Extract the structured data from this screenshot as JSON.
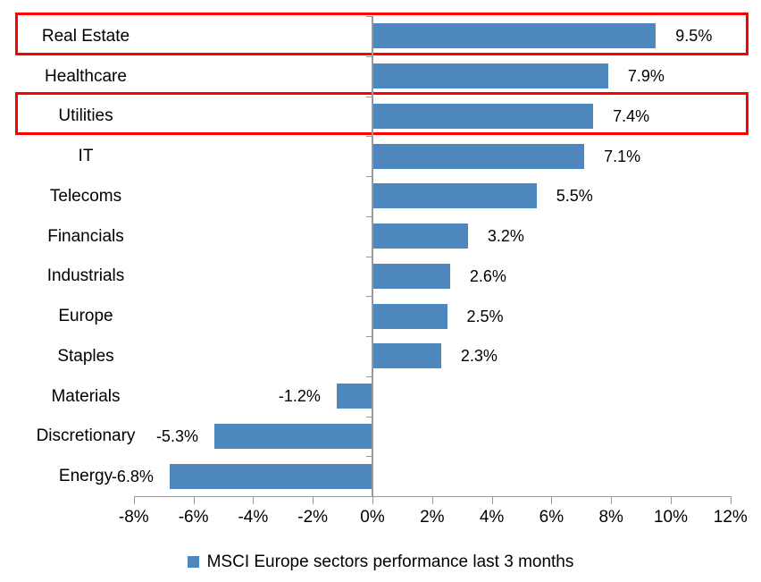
{
  "chart_data": {
    "type": "bar",
    "orientation": "horizontal",
    "title": "",
    "categories": [
      "Real Estate",
      "Healthcare",
      "Utilities",
      "IT",
      "Telecoms",
      "Financials",
      "Industrials",
      "Europe",
      "Staples",
      "Materials",
      "Discretionary",
      "Energy"
    ],
    "values": [
      9.5,
      7.9,
      7.4,
      7.1,
      5.5,
      3.2,
      2.6,
      2.5,
      2.3,
      -1.2,
      -5.3,
      -6.8
    ],
    "data_labels": [
      "9.5%",
      "7.9%",
      "7.4%",
      "7.1%",
      "5.5%",
      "3.2%",
      "2.6%",
      "2.5%",
      "2.3%",
      "-1.2%",
      "-5.3%",
      "-6.8%"
    ],
    "x_axis": {
      "tick_labels": [
        "-8%",
        "-6%",
        "-4%",
        "-2%",
        "0%",
        "2%",
        "4%",
        "6%",
        "8%",
        "10%",
        "12%"
      ],
      "min": -8,
      "max": 12,
      "step": 2
    },
    "grid": false,
    "legend": {
      "position": "bottom",
      "label": "MSCI Europe sectors performance last 3 months"
    },
    "highlight": {
      "categories": [
        "Real Estate",
        "Utilities"
      ]
    }
  },
  "colors": {
    "bar": "#4E86BE",
    "legend_marker": "#4E86BE",
    "axis": "#999999",
    "highlight_box": "#FE0000",
    "text": "#000000",
    "background": "#FFFFFF"
  }
}
